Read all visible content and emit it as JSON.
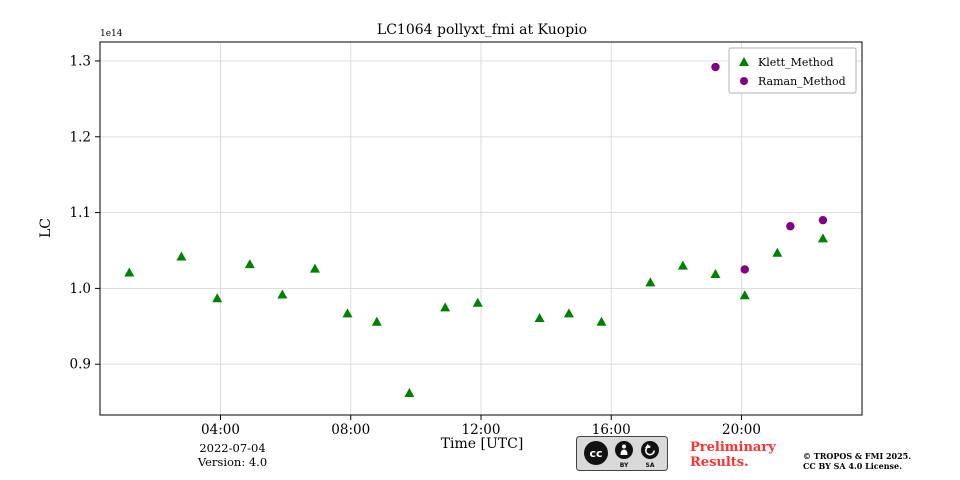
{
  "chart_data": {
    "type": "scatter",
    "title": "LC1064 pollyxt_fmi at Kuopio",
    "xlabel": "Time [UTC]",
    "ylabel": "LC",
    "y_offset_text": "1e14",
    "xlim": [
      0.3,
      23.7
    ],
    "ylim": [
      0.833,
      1.325
    ],
    "xticks": [
      4,
      8,
      12,
      16,
      20
    ],
    "xtick_labels": [
      "04:00",
      "08:00",
      "12:00",
      "16:00",
      "20:00"
    ],
    "yticks": [
      0.9,
      1.0,
      1.1,
      1.2,
      1.3
    ],
    "ytick_labels": [
      "0.9",
      "1.0",
      "1.1",
      "1.2",
      "1.3"
    ],
    "grid": true,
    "legend": {
      "position": "upper right",
      "entries": [
        "Klett_Method",
        "Raman_Method"
      ]
    },
    "series": [
      {
        "name": "Klett_Method",
        "marker": "triangle",
        "color": "#008000",
        "x_hours": [
          1.2,
          2.8,
          3.9,
          4.9,
          5.9,
          6.9,
          7.9,
          8.8,
          9.8,
          10.9,
          11.9,
          13.8,
          14.7,
          15.7,
          17.2,
          18.2,
          19.2,
          20.1,
          21.1,
          22.5
        ],
        "y_values_1e14": [
          1.021,
          1.042,
          0.987,
          1.032,
          0.992,
          1.026,
          0.967,
          0.956,
          0.862,
          0.975,
          0.981,
          0.961,
          0.967,
          0.956,
          1.008,
          1.03,
          1.019,
          0.991,
          1.047,
          1.066
        ]
      },
      {
        "name": "Raman_Method",
        "marker": "circle",
        "color": "#800080",
        "x_hours": [
          19.2,
          20.1,
          21.5,
          22.5
        ],
        "y_values_1e14": [
          1.292,
          1.025,
          1.082,
          1.09
        ]
      }
    ]
  },
  "footer": {
    "date": "2022-07-04",
    "version": "Version: 4.0",
    "preliminary_line1": "Preliminary",
    "preliminary_line2": "Results.",
    "preliminary_color": "#fb3232",
    "copyright_line1": "© TROPOS & FMI 2025.",
    "copyright_line2": "CC BY SA 4.0 License.",
    "cc_badge": {
      "cc": "cc",
      "by": "BY",
      "sa": "SA"
    }
  }
}
